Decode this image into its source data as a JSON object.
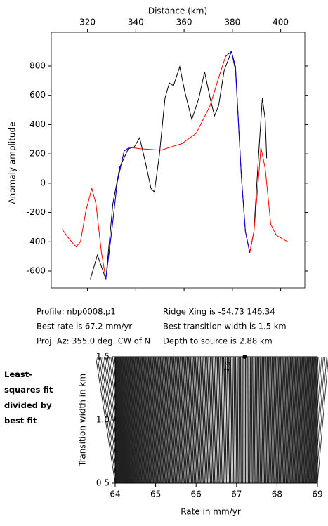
{
  "chart_data": [
    {
      "type": "line",
      "x_label": "Distance (km)",
      "y_label": "Anomaly amplitude",
      "xlim": [
        305,
        410
      ],
      "xticks": [
        320,
        340,
        360,
        380,
        400
      ],
      "ylim": [
        -715,
        1030
      ],
      "yticks": [
        -600,
        -400,
        -200,
        0,
        200,
        400,
        600,
        800
      ],
      "series": [
        {
          "color": "#000000",
          "x": [
            321.2,
            324.1,
            327.6,
            330.5,
            333.4,
            336.9,
            339.3,
            341.6,
            343.9,
            346.3,
            347.7,
            349.8,
            352.1,
            353.9,
            355.6,
            358.2,
            360.3,
            363.2,
            366.1,
            368.5,
            370.8,
            372.6,
            374.3,
            376.6,
            379.6,
            381.3,
            383.7,
            385.4,
            387.2,
            388.9,
            390.7,
            392.4,
            393.6,
            394.2
          ],
          "values": [
            -655,
            -490,
            -655,
            -140,
            110,
            235,
            245,
            310,
            150,
            -35,
            -60,
            195,
            580,
            685,
            665,
            795,
            625,
            435,
            580,
            760,
            580,
            460,
            530,
            770,
            900,
            770,
            50,
            -330,
            -475,
            -330,
            150,
            580,
            435,
            170
          ]
        },
        {
          "color": "#ff0000",
          "x": [
            309.5,
            312.4,
            315.3,
            317.1,
            319.4,
            321.8,
            323.5,
            325.8,
            327.6,
            330.0,
            332.3,
            335.2,
            337.5,
            341.6,
            350.4,
            359.1,
            365.0,
            370.8,
            374.3,
            377.2,
            379.6,
            381.3,
            383.7,
            385.4,
            387.2,
            388.9,
            390.7,
            391.8,
            393.6,
            395.9,
            398.2,
            402.9
          ],
          "values": [
            -315,
            -380,
            -435,
            -400,
            -185,
            -35,
            -140,
            -475,
            -655,
            -330,
            5,
            220,
            245,
            235,
            225,
            270,
            340,
            530,
            720,
            865,
            900,
            795,
            50,
            -330,
            -475,
            -330,
            5,
            245,
            100,
            -280,
            -355,
            -400
          ]
        },
        {
          "color": "#0000ff",
          "x": [
            327.6,
            330.0,
            332.3,
            335.2,
            337.5
          ],
          "values": [
            -655,
            -330,
            5,
            220,
            245
          ]
        },
        {
          "color": "#0000ff",
          "x": [
            377.2,
            379.6,
            381.3,
            383.7,
            385.4,
            387.2
          ],
          "values": [
            865,
            900,
            795,
            50,
            -330,
            -475
          ]
        }
      ],
      "annotations": [
        "Profile: nbp0008.p1",
        "Best rate is 67.2 mm/yr",
        "Proj. Az: 355.0 deg. CW of N",
        "Ridge Xing is -54.73 146.34",
        "Best transition width is 1.5 km",
        "Depth to source is   2.88 km"
      ]
    },
    {
      "type": "contour",
      "title": "Least-squares fit divided by best fit",
      "x_label": "Rate in mm/yr",
      "y_label": "Transition width in km",
      "xlim": [
        64,
        69
      ],
      "xticks": [
        64,
        65,
        66,
        67,
        68,
        69
      ],
      "ylim": [
        0.5,
        1.5
      ],
      "yticks": [
        0.5,
        {
          "value": 1,
          "label": "1.0"
        },
        1.5
      ],
      "contour_label": "1.5",
      "best": {
        "x": 67.2,
        "y": 1.5
      }
    }
  ]
}
